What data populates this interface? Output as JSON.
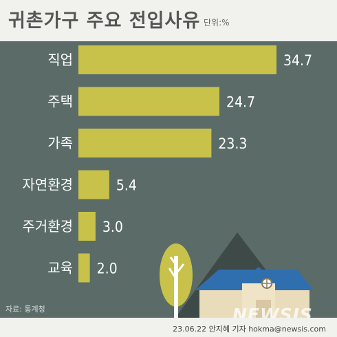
{
  "title": "귀촌가구 주요 전입사유",
  "unit": "단위:%",
  "source": "자료: 통계청",
  "credit": "23.06.22 안지혜 기자 hokma@newsis.com",
  "watermark": "NEWSIS",
  "colors": {
    "background": "#5a6b68",
    "header_band": "#f1f1ee",
    "bar": "#c8c24a",
    "text_light": "#ffffff"
  },
  "chart_data": {
    "type": "bar",
    "orientation": "horizontal",
    "title": "귀촌가구 주요 전입사유",
    "unit": "단위:%",
    "categories": [
      "직업",
      "주택",
      "가족",
      "자연환경",
      "주거환경",
      "교육"
    ],
    "values": [
      34.7,
      24.7,
      23.3,
      5.4,
      3.0,
      2.0
    ],
    "value_labels": [
      "34.7",
      "24.7",
      "23.3",
      "5.4",
      "3.0",
      "2.0"
    ],
    "grid": false,
    "legend": "none"
  }
}
